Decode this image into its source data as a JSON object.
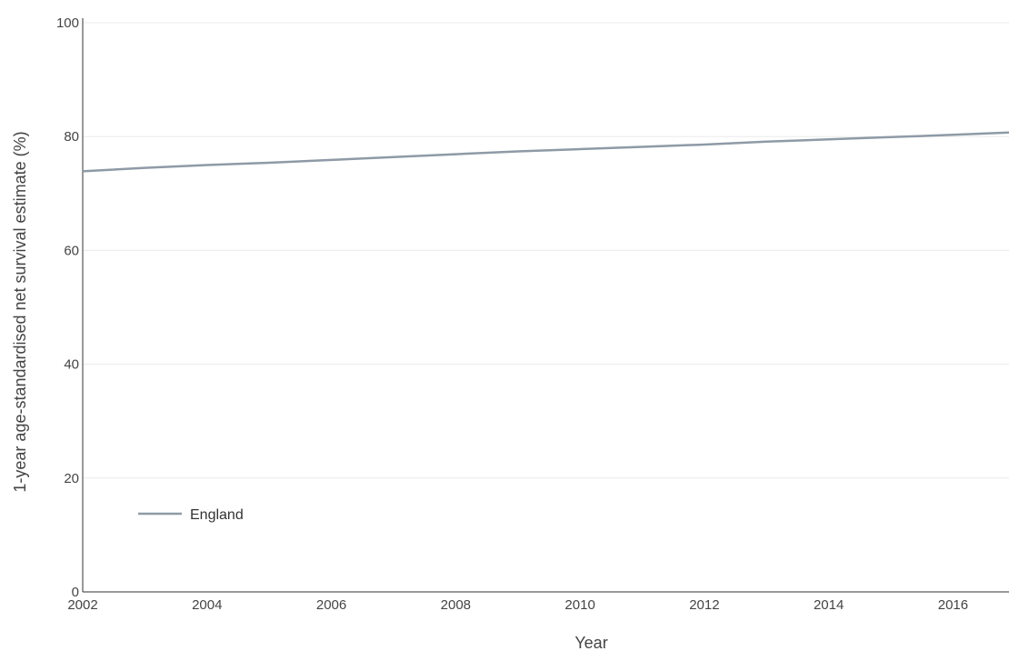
{
  "chart_data": {
    "type": "line",
    "xlabel": "Year",
    "ylabel": "1-year age-standardised net survival estimate (%)",
    "xlim": [
      2002,
      2016.9
    ],
    "ylim": [
      0,
      100
    ],
    "x_ticks": [
      2002,
      2004,
      2006,
      2008,
      2010,
      2012,
      2014,
      2016
    ],
    "y_ticks": [
      0,
      20,
      40,
      60,
      80,
      100
    ],
    "grid": "horizontal",
    "legend": "bottom-left",
    "series": [
      {
        "name": "England",
        "color": "#8e9aa6",
        "x": [
          2002,
          2003,
          2004,
          2005,
          2006,
          2007,
          2008,
          2009,
          2010,
          2011,
          2012,
          2013,
          2014,
          2015,
          2016,
          2016.9
        ],
        "y": [
          73.9,
          74.5,
          75.0,
          75.4,
          75.9,
          76.4,
          76.9,
          77.4,
          77.8,
          78.2,
          78.6,
          79.1,
          79.5,
          79.9,
          80.3,
          80.7
        ]
      }
    ]
  }
}
